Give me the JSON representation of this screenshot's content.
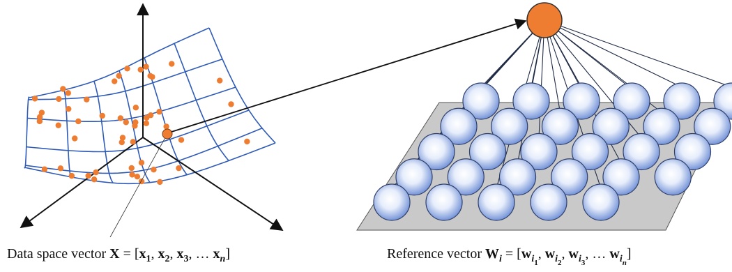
{
  "captions": [
    {
      "segments": [
        {
          "text": "Data space vector "
        },
        {
          "text": "X",
          "bold": true
        },
        {
          "text": " = ["
        },
        {
          "text": "x",
          "bold": true
        },
        {
          "text": "1",
          "bold": true,
          "level": 1
        },
        {
          "text": ", "
        },
        {
          "text": "x",
          "bold": true
        },
        {
          "text": "2",
          "bold": true,
          "level": 1
        },
        {
          "text": ", "
        },
        {
          "text": "x",
          "bold": true
        },
        {
          "text": "3",
          "bold": true,
          "level": 1
        },
        {
          "text": ", … "
        },
        {
          "text": "x",
          "bold": true
        },
        {
          "text": "n",
          "bold": true,
          "italic": true,
          "level": 1
        },
        {
          "text": "]"
        }
      ]
    },
    {
      "segments": [
        {
          "text": "Reference vector "
        },
        {
          "text": "W",
          "bold": true
        },
        {
          "text": "i",
          "bold": true,
          "italic": true,
          "level": 1
        },
        {
          "text": " = ["
        },
        {
          "text": "w",
          "bold": true
        },
        {
          "text": "i",
          "bold": true,
          "italic": true,
          "level": 1
        },
        {
          "text": "1",
          "bold": true,
          "level": 2
        },
        {
          "text": ", "
        },
        {
          "text": "w",
          "bold": true
        },
        {
          "text": "i",
          "bold": true,
          "italic": true,
          "level": 1
        },
        {
          "text": "2",
          "bold": true,
          "level": 2
        },
        {
          "text": ", "
        },
        {
          "text": "w",
          "bold": true
        },
        {
          "text": "i",
          "bold": true,
          "italic": true,
          "level": 1
        },
        {
          "text": "3",
          "bold": true,
          "level": 2
        },
        {
          "text": ", … "
        },
        {
          "text": "w",
          "bold": true
        },
        {
          "text": "i",
          "bold": true,
          "italic": true,
          "level": 1
        },
        {
          "text": "n",
          "bold": true,
          "italic": true,
          "level": 2
        },
        {
          "text": "]"
        }
      ]
    }
  ]
}
